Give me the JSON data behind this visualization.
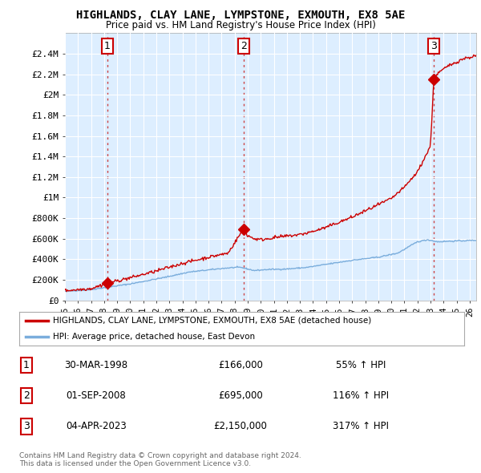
{
  "title": "HIGHLANDS, CLAY LANE, LYMPSTONE, EXMOUTH, EX8 5AE",
  "subtitle": "Price paid vs. HM Land Registry's House Price Index (HPI)",
  "ylim": [
    0,
    2600000
  ],
  "xlim_start": 1995.0,
  "xlim_end": 2026.5,
  "yticks": [
    0,
    200000,
    400000,
    600000,
    800000,
    1000000,
    1200000,
    1400000,
    1600000,
    1800000,
    2000000,
    2200000,
    2400000
  ],
  "ytick_labels": [
    "£0",
    "£200K",
    "£400K",
    "£600K",
    "£800K",
    "£1M",
    "£1.2M",
    "£1.4M",
    "£1.6M",
    "£1.8M",
    "£2M",
    "£2.2M",
    "£2.4M"
  ],
  "xtick_years": [
    1995,
    1996,
    1997,
    1998,
    1999,
    2000,
    2001,
    2002,
    2003,
    2004,
    2005,
    2006,
    2007,
    2008,
    2009,
    2010,
    2011,
    2012,
    2013,
    2014,
    2015,
    2016,
    2017,
    2018,
    2019,
    2020,
    2021,
    2022,
    2023,
    2024,
    2025,
    2026
  ],
  "sale_color": "#cc0000",
  "hpi_color": "#7aaddc",
  "plot_bg_color": "#ddeeff",
  "background_color": "#ffffff",
  "grid_color": "#ffffff",
  "sales": [
    {
      "year": 1998.24,
      "price": 166000,
      "label": "1"
    },
    {
      "year": 2008.67,
      "price": 695000,
      "label": "2"
    },
    {
      "year": 2023.25,
      "price": 2150000,
      "label": "3"
    }
  ],
  "table_rows": [
    {
      "label": "1",
      "date": "30-MAR-1998",
      "price": "£166,000",
      "hpi": "55% ↑ HPI"
    },
    {
      "label": "2",
      "date": "01-SEP-2008",
      "price": "£695,000",
      "hpi": "116% ↑ HPI"
    },
    {
      "label": "3",
      "date": "04-APR-2023",
      "price": "£2,150,000",
      "hpi": "317% ↑ HPI"
    }
  ],
  "legend_line1": "HIGHLANDS, CLAY LANE, LYMPSTONE, EXMOUTH, EX8 5AE (detached house)",
  "legend_line2": "HPI: Average price, detached house, East Devon",
  "footnote": "Contains HM Land Registry data © Crown copyright and database right 2024.\nThis data is licensed under the Open Government Licence v3.0.",
  "vline_color": "#cc4444",
  "vline_years": [
    1998.24,
    2008.67,
    2023.25
  ]
}
